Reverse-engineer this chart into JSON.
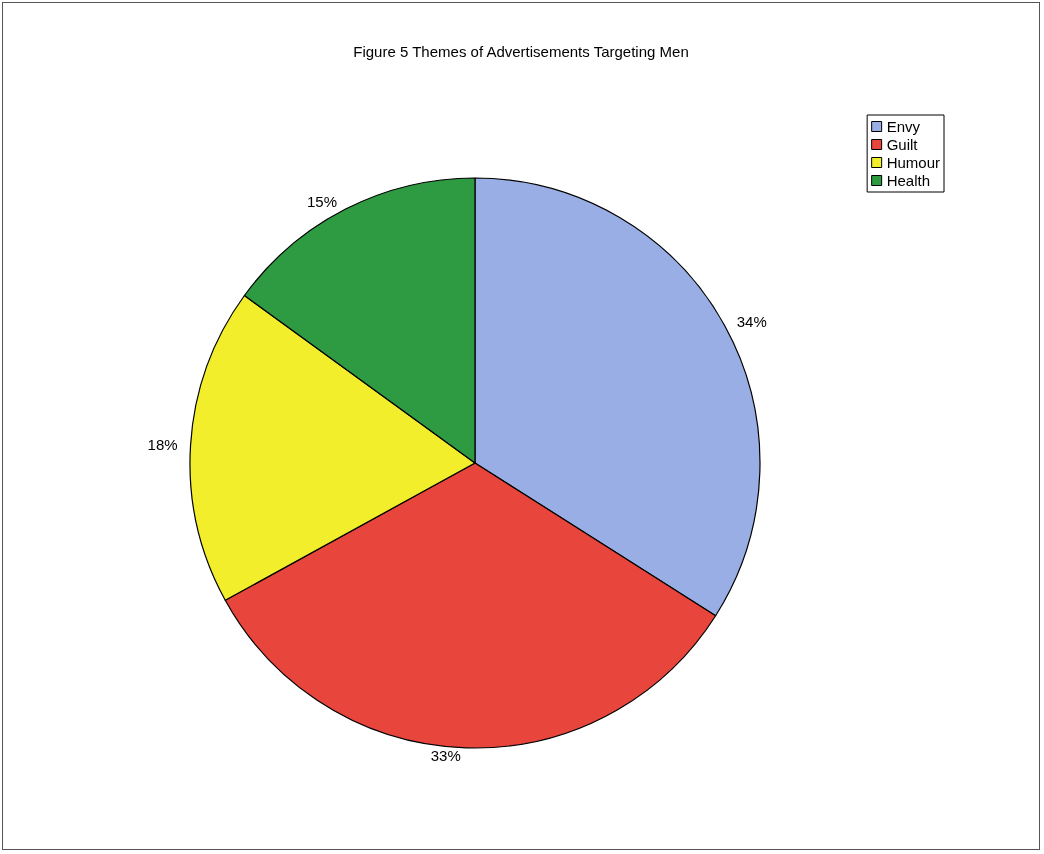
{
  "chart_data": {
    "type": "pie",
    "title": "Figure 5 Themes of Advertisements Targeting Men",
    "categories": [
      "Envy",
      "Guilt",
      "Humour",
      "Health"
    ],
    "values": [
      34,
      33,
      18,
      15
    ],
    "value_labels": [
      "34%",
      "33%",
      "18%",
      "15%"
    ],
    "colors": [
      "#9aaee6",
      "#e8453c",
      "#f2ee2c",
      "#2e9a42"
    ],
    "legend": "top right"
  }
}
